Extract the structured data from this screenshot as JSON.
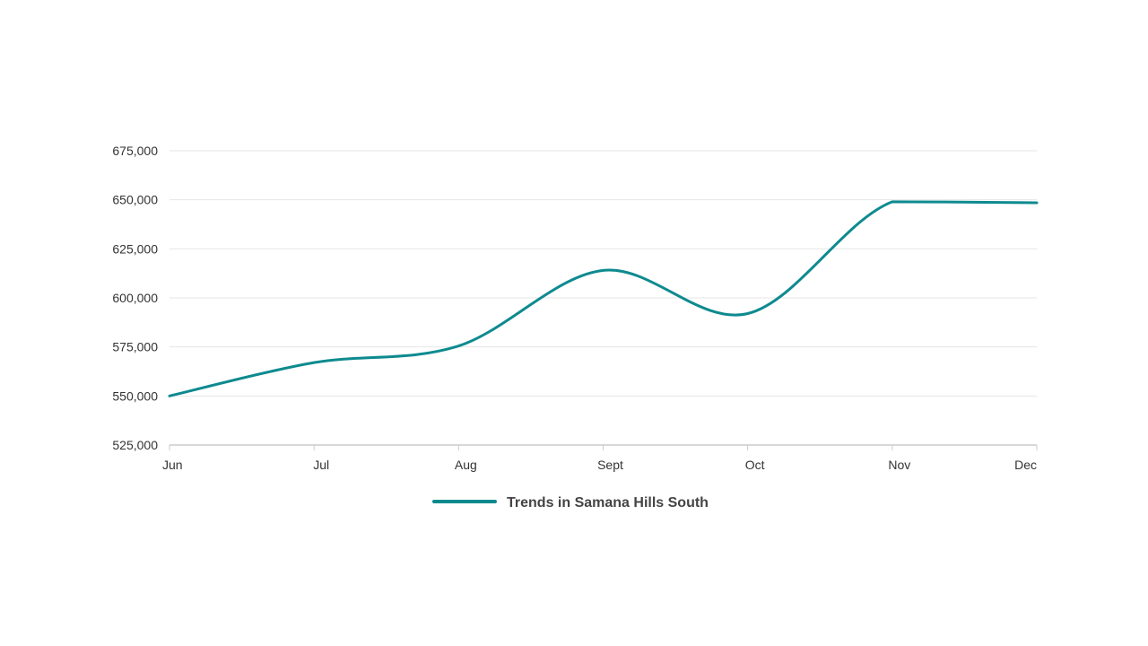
{
  "chart_data": {
    "type": "line",
    "title": "",
    "xlabel": "",
    "ylabel": "",
    "categories": [
      "Jun",
      "Jul",
      "Aug",
      "Sept",
      "Oct",
      "Nov",
      "Dec"
    ],
    "series": [
      {
        "name": "Trends in Samana Hills South",
        "values": [
          550000,
          567000,
          575500,
          614000,
          592000,
          649000,
          648500
        ],
        "color": "#0e8a8f"
      }
    ],
    "ylim": [
      525000,
      675000
    ],
    "yticks": [
      525000,
      550000,
      575000,
      600000,
      625000,
      650000,
      675000
    ],
    "ytick_labels": [
      "525,000",
      "550,000",
      "575,000",
      "600,000",
      "625,000",
      "650,000",
      "675,000"
    ],
    "grid": true,
    "legend_position": "bottom-center",
    "smooth": true
  }
}
